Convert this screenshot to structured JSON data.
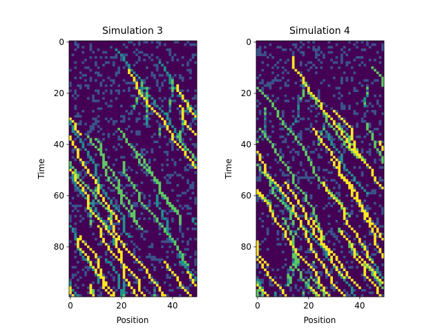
{
  "chart_data": [
    {
      "type": "heatmap",
      "title": "Simulation 3",
      "xlabel": "Position",
      "ylabel": "Time",
      "x_range": [
        0,
        49
      ],
      "y_range": [
        0,
        99
      ],
      "y_inverted": true,
      "colormap": "viridis",
      "x_ticks": [
        "0",
        "20",
        "40"
      ],
      "y_ticks": [
        "0",
        "20",
        "40",
        "60",
        "80"
      ],
      "grid": false,
      "seed": 3
    },
    {
      "type": "heatmap",
      "title": "Simulation 4",
      "xlabel": "Position",
      "ylabel": "Time",
      "x_range": [
        0,
        49
      ],
      "y_range": [
        0,
        99
      ],
      "y_inverted": true,
      "colormap": "viridis",
      "x_ticks": [
        "0",
        "20",
        "40"
      ],
      "y_ticks": [
        "0",
        "20",
        "40",
        "60",
        "80"
      ],
      "grid": false,
      "seed": 4
    }
  ]
}
